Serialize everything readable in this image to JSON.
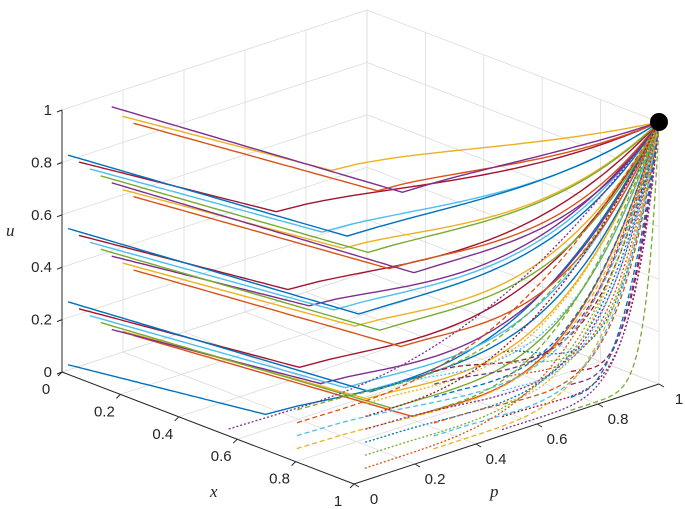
{
  "chart_data": {
    "type": "line",
    "title": "",
    "view": "3d",
    "axes": {
      "x": {
        "label": "x",
        "range": [
          0,
          1
        ],
        "ticks": [
          "0",
          "0.2",
          "0.4",
          "0.6",
          "0.8",
          "1"
        ]
      },
      "p": {
        "label": "p",
        "range": [
          0,
          1
        ],
        "ticks": [
          "0",
          "0.2",
          "0.4",
          "0.6",
          "0.8",
          "1"
        ]
      },
      "u": {
        "label": "u",
        "range": [
          0,
          1
        ],
        "ticks": [
          "0",
          "0.2",
          "0.4",
          "0.6",
          "0.8",
          "1"
        ]
      }
    },
    "grid": true,
    "legend": "none",
    "series_count_approx": 60,
    "series_description_note": "",
    "convergence_point": {
      "x": 1,
      "p": 1,
      "u": 1
    },
    "trajectories_solid_start_u": [
      0.02,
      0.05,
      0.08,
      0.1,
      0.14,
      0.18,
      0.22,
      0.26,
      0.3,
      0.34,
      0.38,
      0.42,
      0.46,
      0.5,
      0.54,
      0.58,
      0.62,
      0.66,
      0.7,
      0.74,
      0.78,
      0.82,
      0.86,
      0.9,
      0.95
    ],
    "palette": [
      "#0072BD",
      "#D95319",
      "#EDB120",
      "#7E2F8E",
      "#77AC30",
      "#4DBEEE",
      "#A2142F"
    ]
  }
}
